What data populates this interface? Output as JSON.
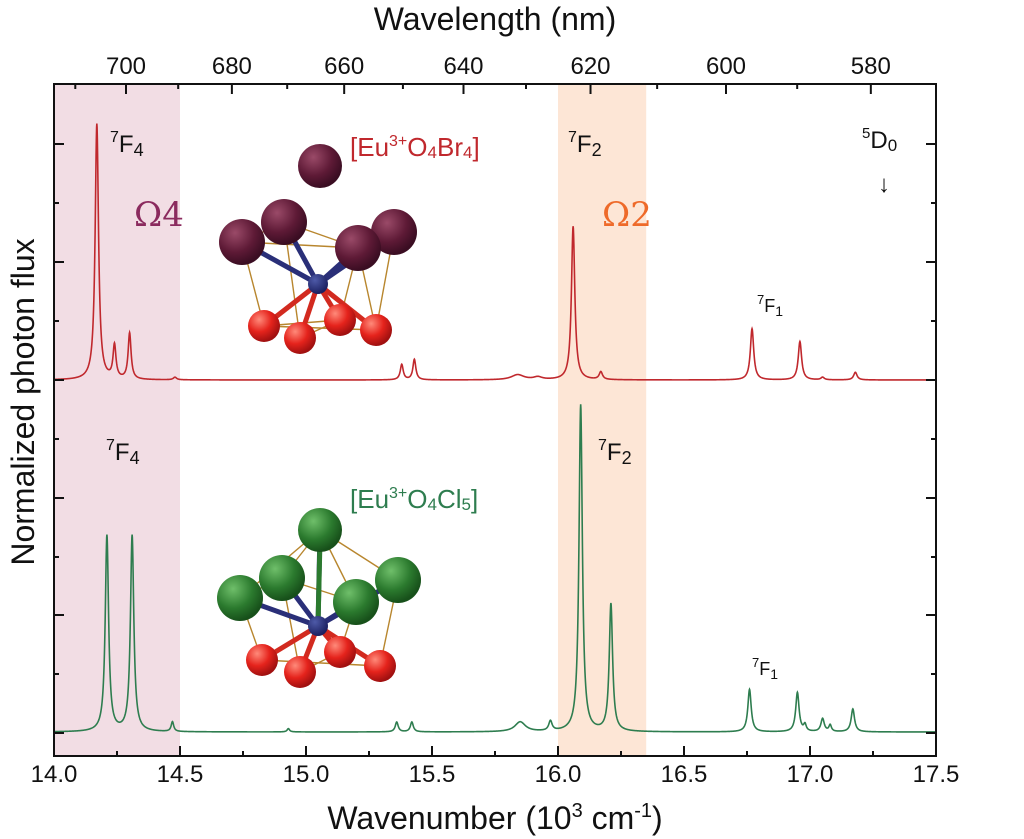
{
  "chart_data": {
    "type": "line",
    "xlabel": "Wavenumber (10",
    "xlabel_sup": "3",
    "xlabel_suffix": " cm",
    "xlabel_sup2": "-1",
    "xlabel_end": ")",
    "top_xlabel": "Wavelength (nm)",
    "ylabel": "Normalized photon flux",
    "xlim": [
      14.0,
      17.5
    ],
    "x_ticks": [
      "14.0",
      "14.5",
      "15.0",
      "15.5",
      "16.0",
      "16.5",
      "17.0",
      "17.5"
    ],
    "x_tick_values": [
      14.0,
      14.5,
      15.0,
      15.5,
      16.0,
      16.5,
      17.0,
      17.5
    ],
    "top_ticks": [
      "700",
      "680",
      "660",
      "640",
      "620",
      "600",
      "580"
    ],
    "top_tick_values": [
      700,
      680,
      660,
      640,
      620,
      600,
      580
    ],
    "bands": [
      {
        "name": "Ω4",
        "x0": 14.0,
        "x1": 14.5,
        "color": "#f2dde4"
      },
      {
        "name": "Ω2",
        "x0": 16.0,
        "x1": 16.35,
        "color": "#fde6d6"
      }
    ],
    "series": [
      {
        "name": "[Eu3+O4Br4]",
        "color": "#c0282d",
        "peaks": [
          [
            14.17,
            1.0,
            0.008
          ],
          [
            14.24,
            0.13,
            0.007
          ],
          [
            14.3,
            0.18,
            0.007
          ],
          [
            14.48,
            0.01,
            0.008
          ],
          [
            15.38,
            0.06,
            0.007
          ],
          [
            15.43,
            0.08,
            0.007
          ],
          [
            15.84,
            0.02,
            0.03
          ],
          [
            15.92,
            0.01,
            0.02
          ],
          [
            16.06,
            0.6,
            0.008
          ],
          [
            16.17,
            0.03,
            0.008
          ],
          [
            16.77,
            0.2,
            0.008
          ],
          [
            16.96,
            0.15,
            0.008
          ],
          [
            17.05,
            0.01,
            0.008
          ],
          [
            17.18,
            0.03,
            0.008
          ]
        ]
      },
      {
        "name": "[Eu3+O4Cl5]",
        "color": "#2e7d4f",
        "peaks": [
          [
            14.21,
            0.6,
            0.008
          ],
          [
            14.31,
            0.6,
            0.008
          ],
          [
            14.47,
            0.03,
            0.006
          ],
          [
            14.93,
            0.01,
            0.006
          ],
          [
            15.36,
            0.03,
            0.007
          ],
          [
            15.42,
            0.03,
            0.007
          ],
          [
            15.85,
            0.03,
            0.025
          ],
          [
            15.97,
            0.03,
            0.008
          ],
          [
            16.09,
            1.0,
            0.008
          ],
          [
            16.21,
            0.39,
            0.008
          ],
          [
            16.76,
            0.13,
            0.008
          ],
          [
            16.95,
            0.12,
            0.008
          ],
          [
            16.98,
            0.02,
            0.006
          ],
          [
            17.05,
            0.04,
            0.008
          ],
          [
            17.08,
            0.02,
            0.006
          ],
          [
            17.17,
            0.07,
            0.008
          ]
        ]
      }
    ]
  },
  "labels": {
    "top_series": {
      "f4": "7F4",
      "f2": "7F2",
      "f1": "7F1",
      "d0": "5D0",
      "formula": "[Eu3+O4Br4]"
    },
    "bottom_series": {
      "f4": "7F4",
      "f2": "7F2",
      "f1": "7F1",
      "formula": "[Eu3+O4Cl5]"
    },
    "omega4": "Ω4",
    "omega2": "Ω2",
    "arrow": "↓"
  }
}
